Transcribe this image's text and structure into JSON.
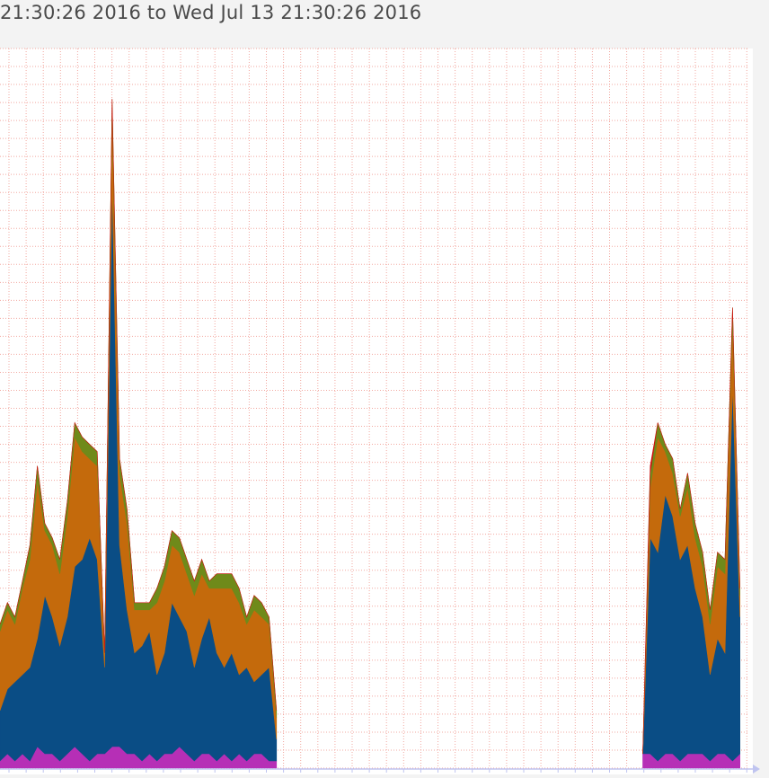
{
  "title": "21:30:26 2016 to Wed Jul 13 21:30:26 2016",
  "colors": {
    "background": "#f3f3f3",
    "plot": "#ffffff",
    "grid": "#f2a8a0",
    "axis": "#bfc4f0",
    "series_blue": "#0a4d85",
    "series_orange": "#c46a0c",
    "series_green": "#6f8a1a",
    "series_magenta": "#b62fb6",
    "series_red": "#d01010"
  },
  "chart_data": {
    "type": "area",
    "stacked": true,
    "title": "21:30:26 2016 to Wed Jul 13 21:30:26 2016",
    "xlabel": "",
    "ylabel": "",
    "grid": true,
    "xlim": [
      0,
      100
    ],
    "ylim": [
      0,
      100
    ],
    "x": [
      0,
      1,
      2,
      3,
      4,
      5,
      6,
      7,
      8,
      9,
      10,
      11,
      12,
      13,
      14,
      15,
      16,
      17,
      18,
      19,
      20,
      21,
      22,
      23,
      24,
      25,
      26,
      27,
      28,
      29,
      30,
      31,
      32,
      33,
      34,
      35,
      36,
      37,
      86,
      87,
      88,
      89,
      90,
      91,
      92,
      93,
      94,
      95,
      96,
      97,
      98,
      99
    ],
    "series": [
      {
        "name": "",
        "color": "#b62fb6",
        "values": [
          1,
          2,
          1,
          2,
          1,
          3,
          2,
          2,
          1,
          2,
          3,
          2,
          1,
          2,
          2,
          3,
          3,
          2,
          2,
          1,
          2,
          1,
          2,
          2,
          3,
          2,
          1,
          2,
          2,
          1,
          2,
          1,
          2,
          1,
          2,
          2,
          1,
          1,
          2,
          2,
          1,
          2,
          2,
          1,
          2,
          2,
          2,
          1,
          2,
          2,
          1,
          2
        ]
      },
      {
        "name": "",
        "color": "#0a4d85",
        "values": [
          7,
          9,
          11,
          11,
          13,
          15,
          22,
          19,
          16,
          19,
          25,
          27,
          31,
          27,
          12,
          78,
          28,
          20,
          14,
          16,
          17,
          12,
          14,
          21,
          18,
          17,
          13,
          16,
          19,
          15,
          12,
          15,
          11,
          13,
          10,
          11,
          13,
          3,
          0,
          30,
          29,
          36,
          33,
          28,
          29,
          23,
          19,
          12,
          16,
          14,
          52,
          19
        ]
      },
      {
        "name": "",
        "color": "#c46a0c",
        "values": [
          11,
          11,
          8,
          12,
          15,
          22,
          9,
          10,
          10,
          14,
          18,
          15,
          11,
          13,
          2,
          10,
          10,
          12,
          6,
          5,
          3,
          10,
          10,
          8,
          9,
          8,
          10,
          9,
          4,
          9,
          11,
          9,
          10,
          6,
          10,
          8,
          6,
          3,
          0,
          7,
          16,
          6,
          6,
          6,
          8,
          7,
          7,
          7,
          10,
          11,
          9,
          3
        ]
      },
      {
        "name": "",
        "color": "#6f8a1a",
        "values": [
          1,
          1,
          1,
          1,
          2,
          2,
          1,
          1,
          2,
          2,
          2,
          2,
          2,
          2,
          0,
          2,
          2,
          2,
          1,
          1,
          1,
          2,
          2,
          2,
          2,
          2,
          2,
          2,
          1,
          2,
          2,
          2,
          2,
          1,
          2,
          2,
          1,
          1,
          0,
          2,
          2,
          1,
          2,
          1,
          2,
          2,
          2,
          2,
          2,
          2,
          2,
          1
        ]
      },
      {
        "name": "",
        "color": "#d01010",
        "values": [
          0,
          0,
          0,
          0,
          0,
          0,
          0,
          0,
          0,
          0,
          0,
          0,
          0,
          0,
          0,
          0,
          0,
          0,
          0,
          0,
          0,
          0,
          0,
          0,
          0,
          0,
          0,
          0,
          0,
          0,
          0,
          0,
          0,
          0,
          0,
          0,
          0,
          0,
          0,
          1,
          0,
          0,
          0,
          0,
          0,
          0,
          0,
          0,
          0,
          0,
          0,
          0
        ]
      }
    ]
  }
}
